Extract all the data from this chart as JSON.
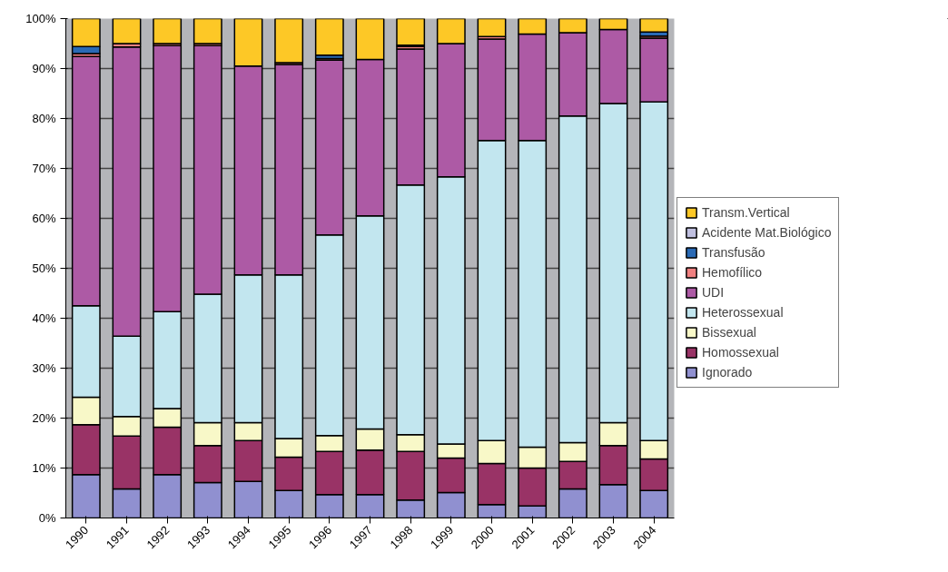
{
  "chart_data": {
    "type": "bar",
    "stacked": true,
    "categories": [
      "1990",
      "1991",
      "1992",
      "1993",
      "1994",
      "1995",
      "1996",
      "1997",
      "1998",
      "1999",
      "2000",
      "2001",
      "2002",
      "2003",
      "2004"
    ],
    "series": [
      {
        "name": "Ignorado",
        "color": "#9090d0",
        "values": [
          8.7,
          5.8,
          8.7,
          7.1,
          7.3,
          5.5,
          4.7,
          4.7,
          3.6,
          5.1,
          2.7,
          2.4,
          5.8,
          6.7,
          5.5
        ]
      },
      {
        "name": "Homossexual",
        "color": "#993366",
        "values": [
          10.0,
          10.6,
          9.5,
          7.4,
          8.2,
          6.7,
          8.6,
          8.9,
          9.7,
          6.9,
          8.2,
          7.6,
          5.5,
          7.8,
          6.3
        ]
      },
      {
        "name": "Bissexual",
        "color": "#f8f8c8",
        "values": [
          5.5,
          3.9,
          3.7,
          4.6,
          3.6,
          3.7,
          3.2,
          4.2,
          3.4,
          2.8,
          4.6,
          4.2,
          3.8,
          4.6,
          3.7
        ]
      },
      {
        "name": "Heterossexual",
        "color": "#c2e6ef",
        "values": [
          18.3,
          16.1,
          19.4,
          25.7,
          29.6,
          32.8,
          40.2,
          42.7,
          50.0,
          53.5,
          60.1,
          61.4,
          65.4,
          63.9,
          67.8
        ]
      },
      {
        "name": "UDI",
        "color": "#ad5aa5",
        "values": [
          49.9,
          57.9,
          53.3,
          49.8,
          41.8,
          42.1,
          35.0,
          31.3,
          27.2,
          26.7,
          20.3,
          21.3,
          16.7,
          14.8,
          12.8
        ]
      },
      {
        "name": "Hemofílico",
        "color": "#f08080",
        "values": [
          0.6,
          0.7,
          0.4,
          0.4,
          0,
          0.4,
          0.3,
          0,
          0.5,
          0,
          0.5,
          0,
          0,
          0,
          0.4
        ]
      },
      {
        "name": "Transfusão",
        "color": "#2a6ab5",
        "values": [
          1.4,
          0,
          0,
          0,
          0,
          0,
          0.7,
          0,
          0.3,
          0,
          0,
          0,
          0,
          0,
          0.8
        ]
      },
      {
        "name": "Acidente Mat.Biológico",
        "color": "#c0c0e0",
        "values": [
          0,
          0,
          0,
          0,
          0,
          0,
          0,
          0,
          0,
          0,
          0,
          0,
          0,
          0,
          0
        ]
      },
      {
        "name": "Transm.Vertical",
        "color": "#fdc826",
        "values": [
          5.6,
          5.0,
          5.0,
          5.0,
          9.5,
          8.8,
          7.3,
          8.2,
          5.3,
          5.0,
          3.6,
          3.1,
          2.8,
          2.2,
          2.7
        ]
      }
    ],
    "ylim": [
      0,
      100
    ],
    "yticks": [
      {
        "value": 0,
        "label": "0%"
      },
      {
        "value": 10,
        "label": "10%"
      },
      {
        "value": 20,
        "label": "20%"
      },
      {
        "value": 30,
        "label": "30%"
      },
      {
        "value": 40,
        "label": "40%"
      },
      {
        "value": 50,
        "label": "50%"
      },
      {
        "value": 60,
        "label": "60%"
      },
      {
        "value": 70,
        "label": "70%"
      },
      {
        "value": 80,
        "label": "80%"
      },
      {
        "value": 90,
        "label": "90%"
      },
      {
        "value": 100,
        "label": "100%"
      }
    ],
    "grid": "y",
    "legend": "right"
  }
}
